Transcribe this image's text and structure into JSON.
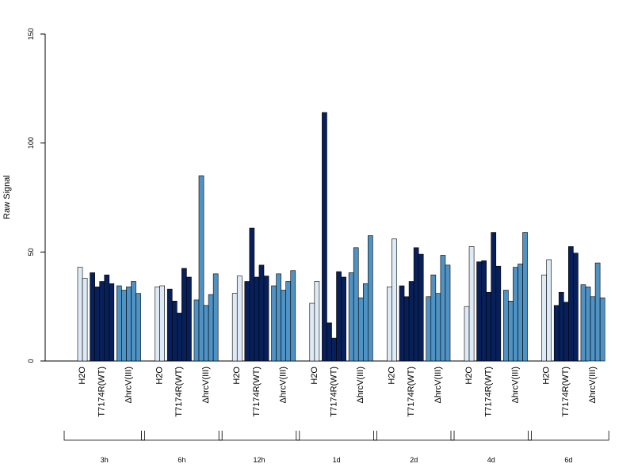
{
  "chart_data": {
    "type": "bar",
    "ylabel": "Raw Signal",
    "ylim": [
      0,
      150
    ],
    "yticks": [
      0,
      50,
      100,
      150
    ],
    "grid": false,
    "groups": [
      {
        "label": "3h",
        "treatments": [
          {
            "name": "H2O",
            "values": [
              43,
              38
            ]
          },
          {
            "name": "T7174R(WT)",
            "values": [
              40.5,
              34,
              36.5,
              39.5,
              35.5
            ]
          },
          {
            "name": "ΔhrcV(III)",
            "values": [
              34.5,
              32.5,
              34,
              36.5,
              31
            ]
          }
        ]
      },
      {
        "label": "6h",
        "treatments": [
          {
            "name": "H2O",
            "values": [
              34,
              34.5
            ]
          },
          {
            "name": "T7174R(WT)",
            "values": [
              33,
              27.5,
              22,
              42.5,
              38.5
            ]
          },
          {
            "name": "ΔhrcV(III)",
            "values": [
              28,
              85,
              25.5,
              30.5,
              40
            ]
          }
        ]
      },
      {
        "label": "12h",
        "treatments": [
          {
            "name": "H2O",
            "values": [
              31,
              39
            ]
          },
          {
            "name": "T7174R(WT)",
            "values": [
              36.5,
              61,
              38.5,
              44,
              39
            ]
          },
          {
            "name": "ΔhrcV(III)",
            "values": [
              34.5,
              40,
              32.5,
              36.5,
              41.5
            ]
          }
        ]
      },
      {
        "label": "1d",
        "treatments": [
          {
            "name": "H2O",
            "values": [
              26.5,
              36.5
            ]
          },
          {
            "name": "T7174R(WT)",
            "values": [
              114,
              17.5,
              10.5,
              41,
              38.5
            ]
          },
          {
            "name": "ΔhrcV(III)",
            "values": [
              40.5,
              52,
              29,
              35.5,
              57.5
            ]
          }
        ]
      },
      {
        "label": "2d",
        "treatments": [
          {
            "name": "H2O",
            "values": [
              34,
              56
            ]
          },
          {
            "name": "T7174R(WT)",
            "values": [
              34.5,
              29.5,
              36.5,
              52,
              49
            ]
          },
          {
            "name": "ΔhrcV(III)",
            "values": [
              29.5,
              39.5,
              31,
              48.5,
              44
            ]
          }
        ]
      },
      {
        "label": "4d",
        "treatments": [
          {
            "name": "H2O",
            "values": [
              25,
              52.5
            ]
          },
          {
            "name": "T7174R(WT)",
            "values": [
              45.5,
              46,
              31.5,
              59,
              43.5
            ]
          },
          {
            "name": "ΔhrcV(III)",
            "values": [
              32.5,
              27.5,
              43,
              44.5,
              59
            ]
          }
        ]
      },
      {
        "label": "6d",
        "treatments": [
          {
            "name": "H2O",
            "values": [
              39.5,
              46.5
            ]
          },
          {
            "name": "T7174R(WT)",
            "values": [
              25.5,
              31.5,
              27,
              52.5,
              49.5
            ]
          },
          {
            "name": "ΔhrcV(III)",
            "values": [
              35,
              34,
              29.5,
              45,
              29
            ]
          }
        ]
      }
    ],
    "colors": {
      "H2O": "#deebf7",
      "T7174R(WT)": "#08205a",
      "ΔhrcV(III)": "#4f92c4"
    }
  }
}
